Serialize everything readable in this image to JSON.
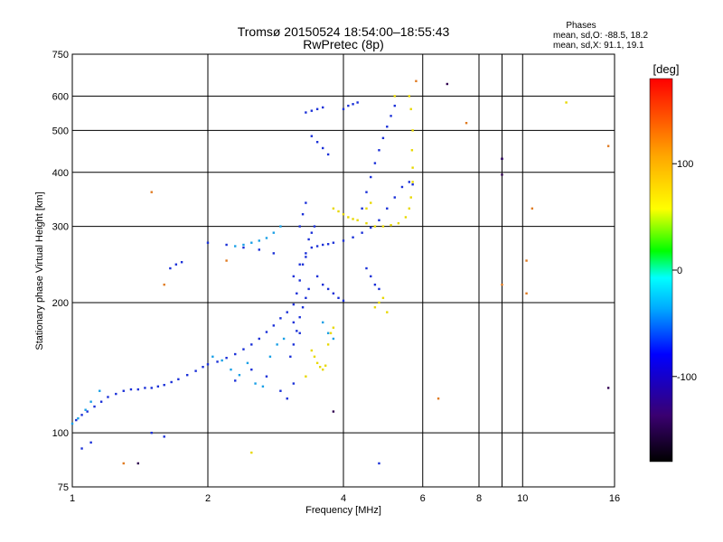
{
  "chart_data": {
    "type": "scatter",
    "title": "Tromsø 20150524 18:54:00–18:55:43",
    "subtitle": "RwPretec (8p)",
    "xlabel": "Frequency [MHz]",
    "ylabel": "Stationary phase Virtual Height [km]",
    "xscale": "log",
    "yscale": "log",
    "xlim": [
      1,
      16
    ],
    "ylim": [
      75,
      750
    ],
    "x_ticks": [
      1,
      2,
      4,
      6,
      8,
      10,
      16
    ],
    "x_tick_labels": [
      "1",
      "2",
      "4",
      "6",
      "8",
      "10",
      "16"
    ],
    "x_gridlines": [
      2,
      4,
      6,
      8,
      9,
      10
    ],
    "y_ticks": [
      75,
      100,
      200,
      300,
      400,
      500,
      600,
      750
    ],
    "y_tick_labels": [
      "75",
      "100",
      "200",
      "300",
      "400",
      "500",
      "600",
      "750"
    ],
    "y_gridlines": [
      100,
      200,
      300,
      400,
      500,
      600
    ],
    "grid": true,
    "phase_box": {
      "title": "Phases",
      "line_o": "mean, sd,O: -88.5, 18.2",
      "line_x": "mean, sd,X:  91.1, 19.1"
    },
    "colorbar": {
      "label": "[deg]",
      "range": [
        -180,
        180
      ],
      "ticks": [
        100,
        0,
        -100
      ],
      "tick_labels": [
        "100",
        "0",
        "-100"
      ],
      "colors": [
        "#ff0000",
        "#ffa500",
        "#ffff00",
        "#00ff00",
        "#00ffff",
        "#0000ff",
        "#4b0082",
        "#000000"
      ]
    },
    "series": [
      {
        "mode": "O",
        "phase_deg": -90,
        "color": "#1a30d8",
        "points": [
          [
            1.02,
            107
          ],
          [
            1.05,
            110
          ],
          [
            1.08,
            112
          ],
          [
            1.12,
            115
          ],
          [
            1.16,
            118
          ],
          [
            1.2,
            121
          ],
          [
            1.25,
            123
          ],
          [
            1.3,
            125
          ],
          [
            1.35,
            126
          ],
          [
            1.4,
            126
          ],
          [
            1.45,
            127
          ],
          [
            1.5,
            127
          ],
          [
            1.55,
            128
          ],
          [
            1.6,
            129
          ],
          [
            1.66,
            131
          ],
          [
            1.72,
            133
          ],
          [
            1.8,
            136
          ],
          [
            1.88,
            139
          ],
          [
            1.95,
            142
          ],
          [
            2.0,
            144
          ],
          [
            2.1,
            146
          ],
          [
            2.2,
            149
          ],
          [
            2.3,
            152
          ],
          [
            2.4,
            156
          ],
          [
            2.5,
            160
          ],
          [
            2.6,
            165
          ],
          [
            2.7,
            171
          ],
          [
            2.8,
            177
          ],
          [
            2.9,
            184
          ],
          [
            3.0,
            190
          ],
          [
            3.1,
            198
          ],
          [
            3.15,
            210
          ],
          [
            3.2,
            225
          ],
          [
            3.25,
            245
          ],
          [
            3.3,
            260
          ],
          [
            3.4,
            268
          ],
          [
            3.5,
            270
          ],
          [
            3.6,
            272
          ],
          [
            3.7,
            273
          ],
          [
            3.8,
            275
          ],
          [
            4.0,
            278
          ],
          [
            4.2,
            283
          ],
          [
            4.4,
            290
          ],
          [
            4.6,
            298
          ],
          [
            4.8,
            310
          ],
          [
            5.0,
            330
          ],
          [
            5.2,
            350
          ],
          [
            5.4,
            370
          ],
          [
            5.6,
            380
          ],
          [
            5.7,
            375
          ],
          [
            3.05,
            150
          ],
          [
            3.1,
            160
          ],
          [
            3.15,
            172
          ],
          [
            3.2,
            185
          ],
          [
            3.25,
            195
          ],
          [
            3.3,
            205
          ],
          [
            3.35,
            215
          ],
          [
            3.1,
            230
          ],
          [
            3.2,
            245
          ],
          [
            3.3,
            255
          ],
          [
            3.2,
            300
          ],
          [
            3.25,
            320
          ],
          [
            3.3,
            340
          ],
          [
            3.35,
            280
          ],
          [
            3.4,
            290
          ],
          [
            3.45,
            300
          ],
          [
            3.5,
            230
          ],
          [
            3.6,
            220
          ],
          [
            3.7,
            215
          ],
          [
            3.8,
            210
          ],
          [
            3.9,
            205
          ],
          [
            4.0,
            202
          ],
          [
            2.8,
            260
          ],
          [
            2.6,
            265
          ],
          [
            2.4,
            268
          ],
          [
            2.2,
            272
          ],
          [
            2.0,
            275
          ],
          [
            1.65,
            240
          ],
          [
            1.7,
            245
          ],
          [
            1.75,
            248
          ],
          [
            3.4,
            485
          ],
          [
            3.5,
            470
          ],
          [
            3.6,
            455
          ],
          [
            3.7,
            440
          ],
          [
            3.3,
            550
          ],
          [
            3.4,
            555
          ],
          [
            3.5,
            560
          ],
          [
            3.6,
            565
          ],
          [
            4.0,
            560
          ],
          [
            4.1,
            570
          ],
          [
            4.2,
            575
          ],
          [
            4.3,
            580
          ],
          [
            4.4,
            330
          ],
          [
            4.5,
            360
          ],
          [
            4.6,
            390
          ],
          [
            4.7,
            420
          ],
          [
            4.8,
            450
          ],
          [
            4.9,
            480
          ],
          [
            5.0,
            510
          ],
          [
            5.1,
            540
          ],
          [
            5.2,
            570
          ],
          [
            4.5,
            240
          ],
          [
            4.6,
            230
          ],
          [
            4.7,
            220
          ],
          [
            4.8,
            215
          ],
          [
            3.1,
            180
          ],
          [
            3.2,
            170
          ],
          [
            3.0,
            120
          ],
          [
            3.1,
            130
          ],
          [
            2.9,
            125
          ],
          [
            2.7,
            135
          ],
          [
            2.5,
            140
          ],
          [
            2.3,
            132
          ],
          [
            1.5,
            100
          ],
          [
            1.6,
            98
          ],
          [
            1.1,
            95
          ],
          [
            1.05,
            92
          ],
          [
            4.8,
            85
          ],
          [
            9.0,
            430
          ]
        ]
      },
      {
        "mode": "O-light",
        "phase_deg": -60,
        "color": "#1aa0e6",
        "points": [
          [
            1.0,
            105
          ],
          [
            1.03,
            108
          ],
          [
            1.07,
            113
          ],
          [
            1.1,
            118
          ],
          [
            1.15,
            125
          ],
          [
            2.05,
            150
          ],
          [
            2.15,
            147
          ],
          [
            2.25,
            140
          ],
          [
            2.35,
            136
          ],
          [
            2.45,
            145
          ],
          [
            2.55,
            130
          ],
          [
            2.65,
            128
          ],
          [
            2.75,
            150
          ],
          [
            2.85,
            160
          ],
          [
            2.95,
            165
          ],
          [
            2.3,
            270
          ],
          [
            2.4,
            272
          ],
          [
            2.5,
            275
          ],
          [
            2.6,
            278
          ],
          [
            2.7,
            282
          ],
          [
            2.8,
            290
          ],
          [
            2.9,
            300
          ],
          [
            3.6,
            180
          ],
          [
            3.7,
            170
          ],
          [
            3.8,
            165
          ]
        ]
      },
      {
        "mode": "X",
        "phase_deg": 90,
        "color": "#e8d800",
        "points": [
          [
            3.8,
            330
          ],
          [
            3.9,
            325
          ],
          [
            4.0,
            320
          ],
          [
            4.1,
            315
          ],
          [
            4.2,
            312
          ],
          [
            4.3,
            310
          ],
          [
            4.5,
            305
          ],
          [
            4.7,
            300
          ],
          [
            4.9,
            300
          ],
          [
            5.1,
            302
          ],
          [
            5.3,
            305
          ],
          [
            5.5,
            315
          ],
          [
            5.6,
            330
          ],
          [
            5.65,
            350
          ],
          [
            5.7,
            380
          ],
          [
            5.7,
            410
          ],
          [
            5.68,
            450
          ],
          [
            5.7,
            500
          ],
          [
            5.65,
            560
          ],
          [
            5.6,
            600
          ],
          [
            3.4,
            155
          ],
          [
            3.45,
            150
          ],
          [
            3.5,
            145
          ],
          [
            3.55,
            142
          ],
          [
            3.6,
            140
          ],
          [
            3.65,
            143
          ],
          [
            3.7,
            160
          ],
          [
            3.75,
            170
          ],
          [
            3.8,
            175
          ],
          [
            4.7,
            195
          ],
          [
            4.8,
            200
          ],
          [
            4.9,
            205
          ],
          [
            5.0,
            190
          ],
          [
            5.2,
            600
          ],
          [
            4.5,
            330
          ],
          [
            4.6,
            340
          ],
          [
            3.3,
            135
          ],
          [
            12.5,
            580
          ],
          [
            2.5,
            90
          ]
        ]
      },
      {
        "mode": "misc",
        "phase_deg": 150,
        "color": "#e07a20",
        "points": [
          [
            1.5,
            360
          ],
          [
            1.6,
            220
          ],
          [
            1.3,
            85
          ],
          [
            2.2,
            250
          ],
          [
            9.0,
            220
          ],
          [
            10.2,
            250
          ],
          [
            10.5,
            330
          ],
          [
            10.2,
            210
          ],
          [
            6.5,
            120
          ],
          [
            15.5,
            460
          ],
          [
            5.8,
            650
          ],
          [
            7.5,
            520
          ]
        ]
      },
      {
        "mode": "dark",
        "phase_deg": -150,
        "color": "#300050",
        "points": [
          [
            1.4,
            85
          ],
          [
            9.0,
            395
          ],
          [
            9.0,
            430
          ],
          [
            3.8,
            112
          ],
          [
            15.5,
            127
          ],
          [
            6.8,
            640
          ]
        ]
      }
    ]
  }
}
